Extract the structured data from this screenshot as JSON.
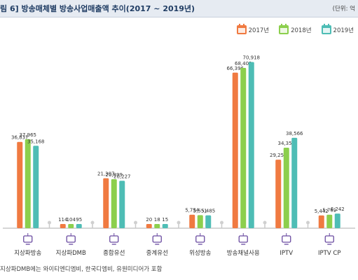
{
  "header": {
    "title": "림 6]  방송매체별 방송사업매출액 추이(2017 ~ 2019년)",
    "unit": "(단위: 억"
  },
  "colors": {
    "2017년": "#f07a41",
    "2018년": "#8ccf4d",
    "2019년": "#4ebdb5"
  },
  "footnote": "지상파DMB에는 와이티엔디엠비, 한국디엠비, 유원미디어가 포함",
  "chart_data": {
    "type": "bar",
    "title": "방송매체별 방송사업매출액 추이(2017 ~ 2019년)",
    "unit": "억",
    "categories": [
      "지상파방송",
      "지상파DMB",
      "종합유선",
      "중계유선",
      "위성방송",
      "방송채널사용",
      "IPTV",
      "IPTV CP"
    ],
    "category_icons": [
      "tv-icon",
      "dmb-icon",
      "cable-icon",
      "relay-icon",
      "satellite-icon",
      "channel-icon",
      "iptv-icon",
      "iptv-cp-icon"
    ],
    "series": [
      {
        "name": "2017년",
        "values": [
          36837,
          114,
          21307,
          20,
          5754,
          66396,
          29251,
          5442
        ],
        "labels": [
          "36,837",
          "114",
          "21,307",
          "20",
          "5,754",
          "66,396",
          "29,251",
          "5,442"
        ]
      },
      {
        "name": "2018년",
        "values": [
          37965,
          104,
          20899,
          18,
          5551,
          68402,
          34358,
          5761
        ],
        "labels": [
          "37,965",
          "104",
          "20,899",
          "18",
          "5,551",
          "68,402",
          "34,358",
          "5,761"
        ]
      },
      {
        "name": "2019년",
        "values": [
          35168,
          95,
          20227,
          15,
          5485,
          70918,
          38566,
          6242
        ],
        "labels": [
          "35,168",
          "95",
          "20,227",
          "15",
          "5,485",
          "70,918",
          "38,566",
          "6,242"
        ]
      }
    ],
    "legend_position": "top-right",
    "grid": false
  }
}
